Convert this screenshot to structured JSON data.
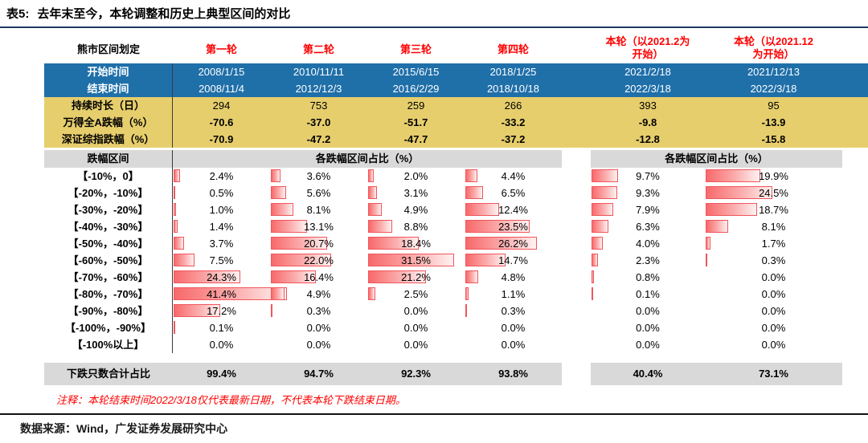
{
  "title": {
    "prefix": "表5:",
    "text": "去年末至今，本轮调整和历史上典型区间的对比"
  },
  "colors": {
    "header_red": "#FF0000",
    "date_row_blue": "#1F6FA9",
    "metric_row_yellow": "#E6CE6D",
    "band_gray": "#D9D9D9",
    "bar_fill": "#F8696B",
    "bar_border": "#F0565C",
    "title_rule_navy": "#1F3864",
    "note_red": "#FF0000"
  },
  "table": {
    "corner_label": "熊市区间划定",
    "round_headers": [
      "第一轮",
      "第二轮",
      "第三轮",
      "第四轮"
    ],
    "current_headers": [
      "本轮（以2021.2为\n开始）",
      "本轮（以2021.12\n为开始）"
    ],
    "info_rows": [
      {
        "label": "开始时间",
        "style": "blue",
        "bold": false,
        "values": [
          "2008/1/15",
          "2010/11/11",
          "2015/6/15",
          "2018/1/25",
          "2021/2/18",
          "2021/12/13"
        ]
      },
      {
        "label": "结束时间",
        "style": "blue",
        "bold": false,
        "values": [
          "2008/11/4",
          "2012/12/3",
          "2016/2/29",
          "2018/10/18",
          "2022/3/18",
          "2022/3/18"
        ]
      },
      {
        "label": "持续时长（日）",
        "style": "yellow",
        "bold": false,
        "values": [
          "294",
          "753",
          "259",
          "266",
          "393",
          "95"
        ]
      },
      {
        "label": "万得全A跌幅（%）",
        "style": "yellow",
        "bold": true,
        "values": [
          "-70.6",
          "-37.0",
          "-51.7",
          "-33.2",
          "-9.8",
          "-13.9"
        ]
      },
      {
        "label": "深证综指跌幅（%）",
        "style": "yellow",
        "bold": true,
        "values": [
          "-70.9",
          "-47.2",
          "-47.7",
          "-37.2",
          "-12.8",
          "-15.8"
        ]
      }
    ],
    "band": {
      "label": "跌幅区间",
      "left": "各跌幅区间占比（%）",
      "right": "各跌幅区间占比（%）"
    },
    "dist_rows": [
      {
        "range": "【-10%，0】",
        "values": [
          "2.4%",
          "3.6%",
          "2.0%",
          "4.4%",
          "9.7%",
          "19.9%"
        ]
      },
      {
        "range": "【-20%，-10%】",
        "values": [
          "0.5%",
          "5.6%",
          "3.1%",
          "6.5%",
          "9.3%",
          "24.5%"
        ]
      },
      {
        "range": "【-30%，-20%】",
        "values": [
          "1.0%",
          "8.1%",
          "4.9%",
          "12.4%",
          "7.9%",
          "18.7%"
        ]
      },
      {
        "range": "【-40%，-30%】",
        "values": [
          "1.4%",
          "13.1%",
          "8.8%",
          "23.5%",
          "6.3%",
          "8.1%"
        ]
      },
      {
        "range": "【-50%，-40%】",
        "values": [
          "3.7%",
          "20.7%",
          "18.4%",
          "26.2%",
          "4.0%",
          "1.7%"
        ]
      },
      {
        "range": "【-60%，-50%】",
        "values": [
          "7.5%",
          "22.0%",
          "31.5%",
          "14.7%",
          "2.3%",
          "0.3%"
        ]
      },
      {
        "range": "【-70%，-60%】",
        "values": [
          "24.3%",
          "16.4%",
          "21.2%",
          "4.8%",
          "0.8%",
          "0.0%"
        ]
      },
      {
        "range": "【-80%，-70%】",
        "values": [
          "41.4%",
          "4.9%",
          "2.5%",
          "1.1%",
          "0.1%",
          "0.0%"
        ]
      },
      {
        "range": "【-90%，-80%】",
        "values": [
          "17.2%",
          "0.3%",
          "0.0%",
          "0.3%",
          "0.0%",
          "0.0%"
        ]
      },
      {
        "range": "【-100%，-90%】",
        "values": [
          "0.1%",
          "0.0%",
          "0.0%",
          "0.0%",
          "0.0%",
          "0.0%"
        ]
      },
      {
        "range": "【-100%以上】",
        "values": [
          "0.0%",
          "0.0%",
          "0.0%",
          "0.0%",
          "0.0%",
          "0.0%"
        ]
      }
    ],
    "total": {
      "label": "下跌只数合计占比",
      "values": [
        "99.4%",
        "94.7%",
        "92.3%",
        "93.8%",
        "40.4%",
        "73.1%"
      ]
    }
  },
  "note": "注释：本轮结束时间2022/3/18仅代表最新日期，不代表本轮下跌结束日期。",
  "source": "数据来源：Wind，广发证券发展研究中心",
  "chart_data": {
    "type": "table",
    "title": "表5: 去年末至今，本轮调整和历史上典型区间的对比",
    "columns": [
      "第一轮",
      "第二轮",
      "第三轮",
      "第四轮",
      "本轮（以2021.2为开始）",
      "本轮（以2021.12为开始）"
    ],
    "start_dates": [
      "2008/1/15",
      "2010/11/11",
      "2015/6/15",
      "2018/1/25",
      "2021/2/18",
      "2021/12/13"
    ],
    "end_dates": [
      "2008/11/4",
      "2012/12/3",
      "2016/2/29",
      "2018/10/18",
      "2022/3/18",
      "2022/3/18"
    ],
    "duration_days": [
      294,
      753,
      259,
      266,
      393,
      95
    ],
    "wind_all_a_decline_pct": [
      -70.6,
      -37.0,
      -51.7,
      -33.2,
      -9.8,
      -13.9
    ],
    "szse_composite_decline_pct": [
      -70.9,
      -47.2,
      -47.7,
      -37.2,
      -12.8,
      -15.8
    ],
    "decline_range_categories": [
      "【-10%，0】",
      "【-20%，-10%】",
      "【-30%，-20%】",
      "【-40%，-30%】",
      "【-50%，-40%】",
      "【-60%，-50%】",
      "【-70%，-60%】",
      "【-80%，-70%】",
      "【-90%，-80%】",
      "【-100%，-90%】",
      "【-100%以上】"
    ],
    "share_unit": "各跌幅区间占比（%）",
    "series": [
      {
        "name": "第一轮",
        "values": [
          2.4,
          0.5,
          1.0,
          1.4,
          3.7,
          7.5,
          24.3,
          41.4,
          17.2,
          0.1,
          0.0
        ]
      },
      {
        "name": "第二轮",
        "values": [
          3.6,
          5.6,
          8.1,
          13.1,
          20.7,
          22.0,
          16.4,
          4.9,
          0.3,
          0.0,
          0.0
        ]
      },
      {
        "name": "第三轮",
        "values": [
          2.0,
          3.1,
          4.9,
          8.8,
          18.4,
          31.5,
          21.2,
          2.5,
          0.0,
          0.0,
          0.0
        ]
      },
      {
        "name": "第四轮",
        "values": [
          4.4,
          6.5,
          12.4,
          23.5,
          26.2,
          14.7,
          4.8,
          1.1,
          0.3,
          0.0,
          0.0
        ]
      },
      {
        "name": "本轮（以2021.2为开始）",
        "values": [
          9.7,
          9.3,
          7.9,
          6.3,
          4.0,
          2.3,
          0.8,
          0.1,
          0.0,
          0.0,
          0.0
        ]
      },
      {
        "name": "本轮（以2021.12为开始）",
        "values": [
          19.9,
          24.5,
          18.7,
          8.1,
          1.7,
          0.3,
          0.0,
          0.0,
          0.0,
          0.0,
          0.0
        ]
      }
    ],
    "total_decline_share_pct": [
      99.4,
      94.7,
      92.3,
      93.8,
      40.4,
      73.1
    ],
    "bar_type": "in-cell horizontal bars",
    "bar_color": "#F8696B"
  }
}
